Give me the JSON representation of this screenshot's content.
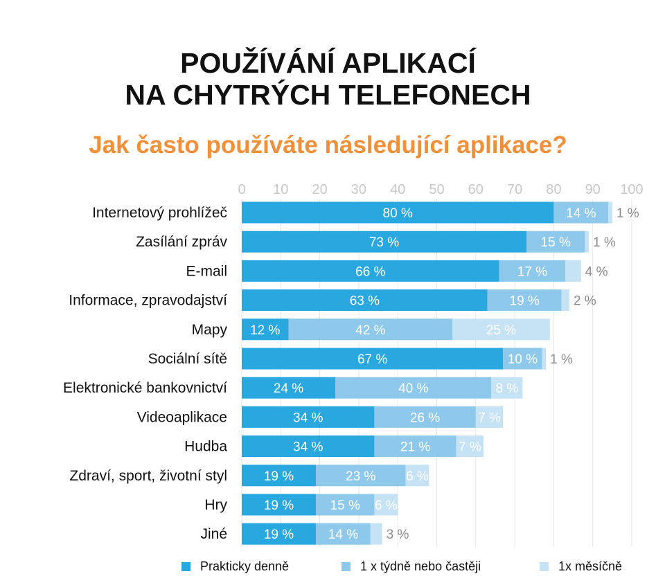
{
  "title_line1": "POUŽÍVÁNÍ APLIKACÍ",
  "title_line2": "NA CHYTRÝCH TELEFONECH",
  "subtitle": "Jak často používáte následující aplikace?",
  "colors": {
    "daily": "#29a8e0",
    "weekly": "#8ec9ec",
    "monthly": "#c6e2f5",
    "subtitle": "#f0903a"
  },
  "chart_data": {
    "type": "bar",
    "orientation": "horizontal",
    "stacked": true,
    "title": "POUŽÍVÁNÍ APLIKACÍ NA CHYTRÝCH TELEFONECH",
    "subtitle": "Jak často používáte následující aplikace?",
    "xlim": [
      0,
      100
    ],
    "xticks": [
      "0",
      "10",
      "20",
      "30",
      "40",
      "50",
      "60",
      "70",
      "80",
      "90",
      "100"
    ],
    "grid": true,
    "legend_position": "bottom",
    "categories": [
      "Internetový prohlížeč",
      "Zasílání zpráv",
      "E-mail",
      "Informace, zpravodajství",
      "Mapy",
      "Sociální sítě",
      "Elektronické bankovnictví",
      "Videoaplikace",
      "Hudba",
      "Zdraví, sport, životní styl",
      "Hry",
      "Jiné"
    ],
    "series": [
      {
        "name": "Prakticky denně",
        "values": [
          80,
          73,
          66,
          63,
          12,
          67,
          24,
          34,
          34,
          19,
          19,
          19
        ],
        "labels": [
          "80 %",
          "73 %",
          "66 %",
          "63 %",
          "12 %",
          "67 %",
          "24 %",
          "34 %",
          "34 %",
          "19 %",
          "19 %",
          "19 %"
        ]
      },
      {
        "name": "1 x týdně nebo častěji",
        "values": [
          14,
          15,
          17,
          19,
          42,
          10,
          40,
          26,
          21,
          23,
          15,
          14
        ],
        "labels": [
          "14 %",
          "15 %",
          "17 %",
          "19 %",
          "42 %",
          "10 %",
          "40 %",
          "26 %",
          "21 %",
          "23 %",
          "15 %",
          "14 %"
        ]
      },
      {
        "name": "1x měsíčně",
        "values": [
          1,
          1,
          4,
          2,
          25,
          1,
          8,
          7,
          7,
          6,
          6,
          3
        ],
        "labels": [
          "1 %",
          "1 %",
          "4 %",
          "2 %",
          "25 %",
          "1 %",
          "8 %",
          "7 %",
          "7 %",
          "6 %",
          "6 %",
          "3 %"
        ]
      }
    ]
  }
}
